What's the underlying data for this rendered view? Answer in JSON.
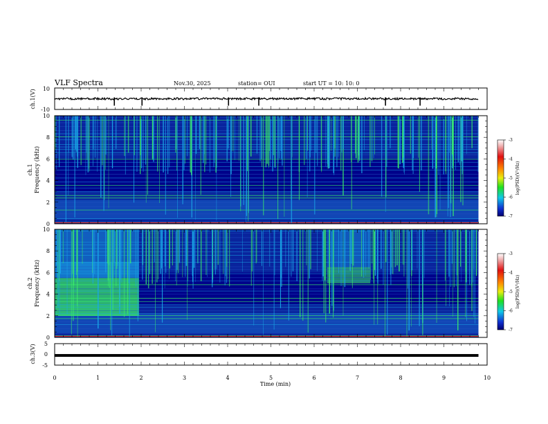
{
  "header": {
    "title": "VLF Spectra",
    "date": "Nov.30, 2025",
    "station": "station= OUI",
    "start": "start  UT =   10: 10: 0"
  },
  "chart_data": {
    "type": "heatmap",
    "title": "VLF Spectra",
    "xlabel": "Time  (min)",
    "xlim": [
      0,
      10
    ],
    "x_ticks": [
      "0",
      "1",
      "2",
      "3",
      "4",
      "5",
      "6",
      "7",
      "8",
      "9",
      "10"
    ],
    "waveform_top": {
      "ylabel": "ch.1(V)",
      "ylim": [
        -10,
        10
      ],
      "y_ticks": [
        "10",
        "-10"
      ],
      "baseline": 0,
      "spikes_min": [
        1.38,
        2.02,
        4.02,
        4.72,
        7.65,
        8.45
      ]
    },
    "spectrogram_ch1": {
      "ylabel_line1": "ch.1",
      "ylabel_line2": "Frequency  (kHz)",
      "ylim": [
        0,
        10
      ],
      "y_ticks": [
        "0",
        "2",
        "4",
        "6",
        "8",
        "10"
      ],
      "data_extent_min": 9.8,
      "colorbar": {
        "label": "log(PSD)(V²/Hz)",
        "range": [
          -7,
          -3
        ],
        "ticks": [
          "-3",
          "-4",
          "-5",
          "-6",
          "-7"
        ]
      }
    },
    "spectrogram_ch2": {
      "ylabel_line1": "ch.2",
      "ylabel_line2": "Frequency  (kHz)",
      "ylim": [
        0,
        10
      ],
      "y_ticks": [
        "0",
        "2",
        "4",
        "6",
        "8",
        "10"
      ],
      "data_extent_min": 9.8,
      "enhanced_band_khz": [
        2,
        5.5
      ],
      "enhanced_band_end_min": 1.95,
      "second_enhancement_min": [
        6.3,
        7.3
      ],
      "colorbar": {
        "label": "log(PSD)(V²/Hz)",
        "range": [
          -7,
          -3
        ],
        "ticks": [
          "-3",
          "-4",
          "-5",
          "-6",
          "-7"
        ]
      }
    },
    "waveform_bottom": {
      "ylabel": "ch.3(V)",
      "ylim": [
        -5,
        5
      ],
      "y_ticks": [
        "5",
        "0",
        "-5"
      ],
      "baseline": -0.5
    },
    "colors": {
      "background": "#00008a",
      "low": "#0a2aa0",
      "mid": "#1aa8e8",
      "high": "#3aee6a",
      "peak": "#e02020"
    }
  }
}
